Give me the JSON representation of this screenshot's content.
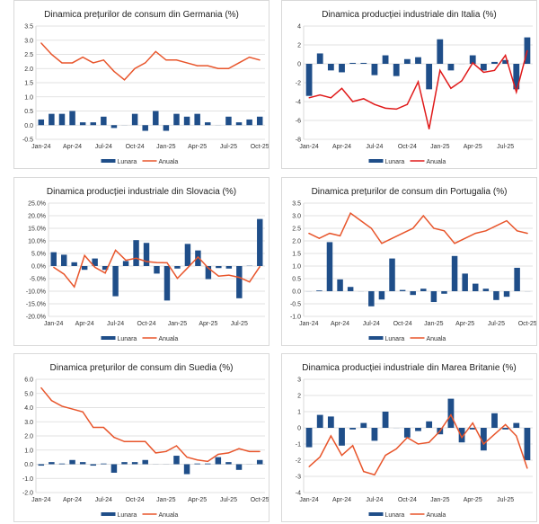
{
  "colors": {
    "lunara": "#1f4e89",
    "anuala_orange": "#e8552b",
    "anuala_red": "#e01a1a",
    "grid": "#d9d9d9"
  },
  "chart_data": [
    {
      "type": "bar+line",
      "title": "Dinamica prețurilor de consum din Germania (%)",
      "ylim": [
        -0.5,
        3.5
      ],
      "ystep": 0.5,
      "yfmt": 1,
      "grid": true,
      "legend": "bottom",
      "line_color": "anuala_orange",
      "xlabels": [
        "Jan-24",
        "Apr-24",
        "Jul-24",
        "Oct-24",
        "Jan-25",
        "Apr-25",
        "Jul-25",
        "Oct-25"
      ],
      "months": [
        "Jan-24",
        "Feb-24",
        "Mar-24",
        "Apr-24",
        "May-24",
        "Jun-24",
        "Jul-24",
        "Aug-24",
        "Sep-24",
        "Oct-24",
        "Nov-24",
        "Dec-24",
        "Jan-25",
        "Feb-25",
        "Mar-25",
        "Apr-25",
        "May-25",
        "Jun-25",
        "Jul-25",
        "Aug-25",
        "Sep-25",
        "Oct-25"
      ],
      "series": [
        {
          "name": "Lunara",
          "type": "bar",
          "values": [
            0.2,
            0.4,
            0.4,
            0.5,
            0.1,
            0.1,
            0.3,
            -0.1,
            0.0,
            0.4,
            -0.2,
            0.5,
            -0.2,
            0.4,
            0.3,
            0.4,
            0.1,
            0.0,
            0.3,
            0.1,
            0.2,
            0.3
          ]
        },
        {
          "name": "Anuala",
          "type": "line",
          "values": [
            2.9,
            2.5,
            2.2,
            2.2,
            2.4,
            2.2,
            2.3,
            1.9,
            1.6,
            2.0,
            2.2,
            2.6,
            2.3,
            2.3,
            2.2,
            2.1,
            2.1,
            2.0,
            2.0,
            2.2,
            2.4,
            2.3
          ]
        }
      ]
    },
    {
      "type": "bar+line",
      "title": "Dinamica producției industriale din Italia (%)",
      "ylim": [
        -8,
        4
      ],
      "ystep": 2,
      "yfmt": 0,
      "grid": true,
      "legend": "bottom",
      "line_color": "anuala_red",
      "xlabels": [
        "Jan-24",
        "Apr-24",
        "Jul-24",
        "Oct-24",
        "Jan-25",
        "Apr-25",
        "Jul-25"
      ],
      "months": [
        "Jan-24",
        "Feb-24",
        "Mar-24",
        "Apr-24",
        "May-24",
        "Jun-24",
        "Jul-24",
        "Aug-24",
        "Sep-24",
        "Oct-24",
        "Nov-24",
        "Dec-24",
        "Jan-25",
        "Feb-25",
        "Mar-25",
        "Apr-25",
        "May-25",
        "Jun-25",
        "Jul-25",
        "Aug-25",
        "Sep-25"
      ],
      "series": [
        {
          "name": "Lunara",
          "type": "bar",
          "values": [
            -3.4,
            1.1,
            -0.7,
            -0.9,
            0.1,
            0.1,
            -1.2,
            0.9,
            -1.3,
            0.5,
            0.7,
            -2.7,
            2.6,
            -0.7,
            0.0,
            0.9,
            -0.7,
            0.2,
            0.4,
            -2.7,
            2.8
          ]
        },
        {
          "name": "Anuala",
          "type": "line",
          "values": [
            -3.6,
            -3.3,
            -3.6,
            -2.6,
            -4.0,
            -3.7,
            -4.3,
            -4.7,
            -4.8,
            -4.3,
            -1.9,
            -6.9,
            -0.7,
            -2.6,
            -1.8,
            0.1,
            -0.9,
            -0.7,
            0.9,
            -3.0,
            1.4
          ]
        }
      ]
    },
    {
      "type": "bar+line",
      "title": "Dinamica producției industriale din Slovacia (%)",
      "ylim": [
        -20,
        25
      ],
      "ystep": 5,
      "yfmt": "pct",
      "grid": true,
      "legend": "bottom",
      "line_color": "anuala_orange",
      "xlabels": [
        "Jan-24",
        "Apr-24",
        "Jul-24",
        "Oct-24",
        "Jan-25",
        "Apr-25",
        "Jul-25"
      ],
      "months": [
        "Jan-24",
        "Feb-24",
        "Mar-24",
        "Apr-24",
        "May-24",
        "Jun-24",
        "Jul-24",
        "Aug-24",
        "Sep-24",
        "Oct-24",
        "Nov-24",
        "Dec-24",
        "Jan-25",
        "Feb-25",
        "Mar-25",
        "Apr-25",
        "May-25",
        "Jun-25",
        "Jul-25",
        "Aug-25",
        "Sep-25"
      ],
      "series": [
        {
          "name": "Lunara",
          "type": "bar",
          "values": [
            5.5,
            4.5,
            1.5,
            -1.5,
            3.0,
            -1.5,
            -12.0,
            2.0,
            10.3,
            9.2,
            -3.0,
            -13.7,
            -1.0,
            8.8,
            6.2,
            -5.2,
            -0.8,
            -1.0,
            -12.8,
            0.1,
            18.7
          ]
        },
        {
          "name": "Anuala",
          "type": "line",
          "values": [
            -0.5,
            -3.2,
            -8.3,
            4.2,
            -0.5,
            -2.8,
            6.3,
            2.3,
            3.1,
            1.8,
            1.4,
            1.3,
            -4.9,
            -0.7,
            3.6,
            -0.8,
            -4.0,
            -3.6,
            -4.5,
            -6.3,
            -0.2
          ]
        }
      ]
    },
    {
      "type": "bar+line",
      "title": "Dinamica prețurilor de consum din Portugalia (%)",
      "ylim": [
        -1,
        3.5
      ],
      "ystep": 0.5,
      "yfmt": 1,
      "grid": true,
      "legend": "bottom",
      "line_color": "anuala_orange",
      "xlabels": [
        "Jan-24",
        "Apr-24",
        "Jul-24",
        "Oct-24",
        "Jan-25",
        "Apr-25",
        "Jul-25",
        "Oct-25"
      ],
      "months": [
        "Jan-24",
        "Feb-24",
        "Mar-24",
        "Apr-24",
        "May-24",
        "Jun-24",
        "Jul-24",
        "Aug-24",
        "Sep-24",
        "Oct-24",
        "Nov-24",
        "Dec-24",
        "Jan-25",
        "Feb-25",
        "Mar-25",
        "Apr-25",
        "May-25",
        "Jun-25",
        "Jul-25",
        "Aug-25",
        "Sep-25",
        "Oct-25"
      ],
      "series": [
        {
          "name": "Lunara",
          "type": "bar",
          "values": [
            0.0,
            0.03,
            1.95,
            0.47,
            0.17,
            0.0,
            -0.6,
            -0.33,
            1.3,
            0.05,
            -0.15,
            0.1,
            -0.43,
            -0.1,
            1.4,
            0.7,
            0.3,
            0.1,
            -0.35,
            -0.22,
            0.93,
            0.0
          ]
        },
        {
          "name": "Anuala",
          "type": "line",
          "values": [
            2.3,
            2.1,
            2.3,
            2.2,
            3.1,
            2.8,
            2.5,
            1.9,
            2.1,
            2.3,
            2.5,
            3.0,
            2.5,
            2.4,
            1.9,
            2.1,
            2.3,
            2.4,
            2.6,
            2.8,
            2.4,
            2.3
          ]
        }
      ]
    },
    {
      "type": "bar+line",
      "title": "Dinamica prețurilor de consum din Suedia (%)",
      "ylim": [
        -2,
        6
      ],
      "ystep": 1,
      "yfmt": 1,
      "grid": true,
      "legend": "bottom",
      "line_color": "anuala_orange",
      "xlabels": [
        "Jan-24",
        "Apr-24",
        "Jul-24",
        "Oct-24",
        "Jan-25",
        "Apr-25",
        "Jul-25",
        "Oct-25"
      ],
      "months": [
        "Jan-24",
        "Feb-24",
        "Mar-24",
        "Apr-24",
        "May-24",
        "Jun-24",
        "Jul-24",
        "Aug-24",
        "Sep-24",
        "Oct-24",
        "Nov-24",
        "Dec-24",
        "Jan-25",
        "Feb-25",
        "Mar-25",
        "Apr-25",
        "May-25",
        "Jun-25",
        "Jul-25",
        "Aug-25",
        "Sep-25",
        "Oct-25"
      ],
      "series": [
        {
          "name": "Lunara",
          "type": "bar",
          "values": [
            -0.1,
            0.15,
            0.05,
            0.3,
            0.15,
            -0.1,
            0.05,
            -0.6,
            0.15,
            0.15,
            0.3,
            0.0,
            0.0,
            0.6,
            -0.7,
            0.05,
            0.05,
            0.5,
            0.15,
            -0.4,
            0.0,
            0.3
          ]
        },
        {
          "name": "Anuala",
          "type": "line",
          "values": [
            5.4,
            4.5,
            4.1,
            3.9,
            3.7,
            2.6,
            2.6,
            1.9,
            1.6,
            1.6,
            1.6,
            0.8,
            0.9,
            1.3,
            0.5,
            0.3,
            0.2,
            0.7,
            0.8,
            1.1,
            0.9,
            0.9
          ]
        }
      ]
    },
    {
      "type": "bar+line",
      "title": "Dinamica producției industriale din Marea Britanie (%)",
      "ylim": [
        -4,
        3
      ],
      "ystep": 1,
      "yfmt": 0,
      "grid": true,
      "legend": "bottom",
      "line_color": "anuala_orange",
      "xlabels": [
        "Jan-24",
        "Apr-24",
        "Jul-24",
        "Oct-24",
        "Jan-25",
        "Apr-25",
        "Jul-25"
      ],
      "months": [
        "Jan-24",
        "Feb-24",
        "Mar-24",
        "Apr-24",
        "May-24",
        "Jun-24",
        "Jul-24",
        "Aug-24",
        "Sep-24",
        "Oct-24",
        "Nov-24",
        "Dec-24",
        "Jan-25",
        "Feb-25",
        "Mar-25",
        "Apr-25",
        "May-25",
        "Jun-25",
        "Jul-25",
        "Aug-25",
        "Sep-25"
      ],
      "series": [
        {
          "name": "Lunara",
          "type": "bar",
          "values": [
            -1.2,
            0.8,
            0.7,
            -1.1,
            -0.1,
            0.3,
            -0.8,
            1.0,
            0.0,
            -0.6,
            -0.2,
            0.4,
            -0.4,
            1.8,
            -0.9,
            -0.1,
            -1.4,
            0.9,
            -0.1,
            0.3,
            -2.0
          ]
        },
        {
          "name": "Anuala",
          "type": "line",
          "values": [
            -2.4,
            -1.8,
            -0.5,
            -1.7,
            -1.1,
            -2.7,
            -2.9,
            -1.7,
            -1.3,
            -0.6,
            -1.0,
            -0.9,
            -0.2,
            0.8,
            -0.6,
            0.3,
            -1.0,
            -0.4,
            0.2,
            -0.5,
            -2.5
          ]
        }
      ]
    }
  ]
}
